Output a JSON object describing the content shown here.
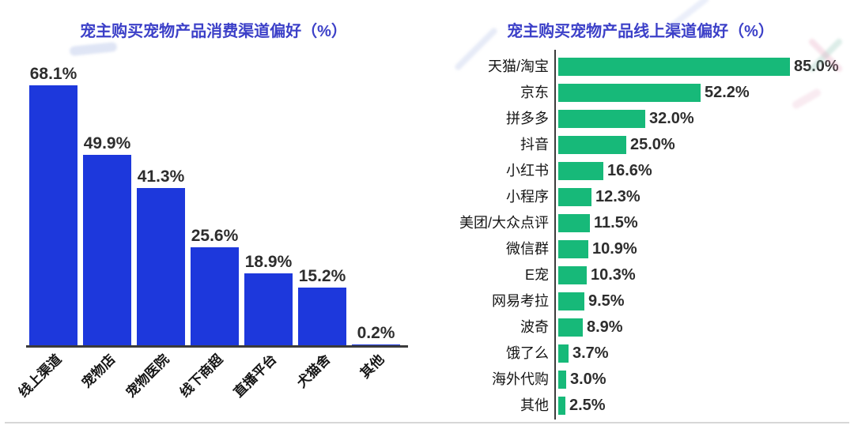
{
  "chart_data": [
    {
      "type": "bar",
      "orientation": "vertical",
      "title": "宠主购买宠物产品消费渠道偏好（%）",
      "title_color": "#3c40c8",
      "bar_color": "#1d38dc",
      "categories": [
        "线上渠道",
        "宠物店",
        "宠物医院",
        "线下商超",
        "直播平台",
        "犬猫舍",
        "其他"
      ],
      "values": [
        68.1,
        49.9,
        41.3,
        25.6,
        18.9,
        15.2,
        0.2
      ],
      "labels": [
        "68.1%",
        "49.9%",
        "41.3%",
        "25.6%",
        "18.9%",
        "15.2%",
        "0.2%"
      ],
      "xlabel": "",
      "ylabel": "",
      "ylim": [
        0,
        72
      ],
      "grid": false,
      "legend": "none",
      "value_label_position": "above",
      "category_label_rotation_deg": 45
    },
    {
      "type": "bar",
      "orientation": "horizontal",
      "title": "宠主购买宠物产品线上渠道偏好（%）",
      "title_color": "#3c40c8",
      "bar_color": "#17b979",
      "categories": [
        "天猫/淘宝",
        "京东",
        "拼多多",
        "抖音",
        "小红书",
        "小程序",
        "美团/大众点评",
        "微信群",
        "E宠",
        "网易考拉",
        "波奇",
        "饿了么",
        "海外代购",
        "其他"
      ],
      "values": [
        85.0,
        52.2,
        32.0,
        25.0,
        16.6,
        12.3,
        11.5,
        10.9,
        10.3,
        9.5,
        8.9,
        3.7,
        3.0,
        2.5
      ],
      "labels": [
        "85.0%",
        "52.2%",
        "32.0%",
        "25.0%",
        "16.6%",
        "12.3%",
        "11.5%",
        "10.9%",
        "10.3%",
        "9.5%",
        "8.9%",
        "3.7%",
        "3.0%",
        "2.5%"
      ],
      "xlabel": "",
      "ylabel": "",
      "xlim": [
        0,
        100
      ],
      "grid": false,
      "legend": "none",
      "value_label_position": "right"
    }
  ]
}
